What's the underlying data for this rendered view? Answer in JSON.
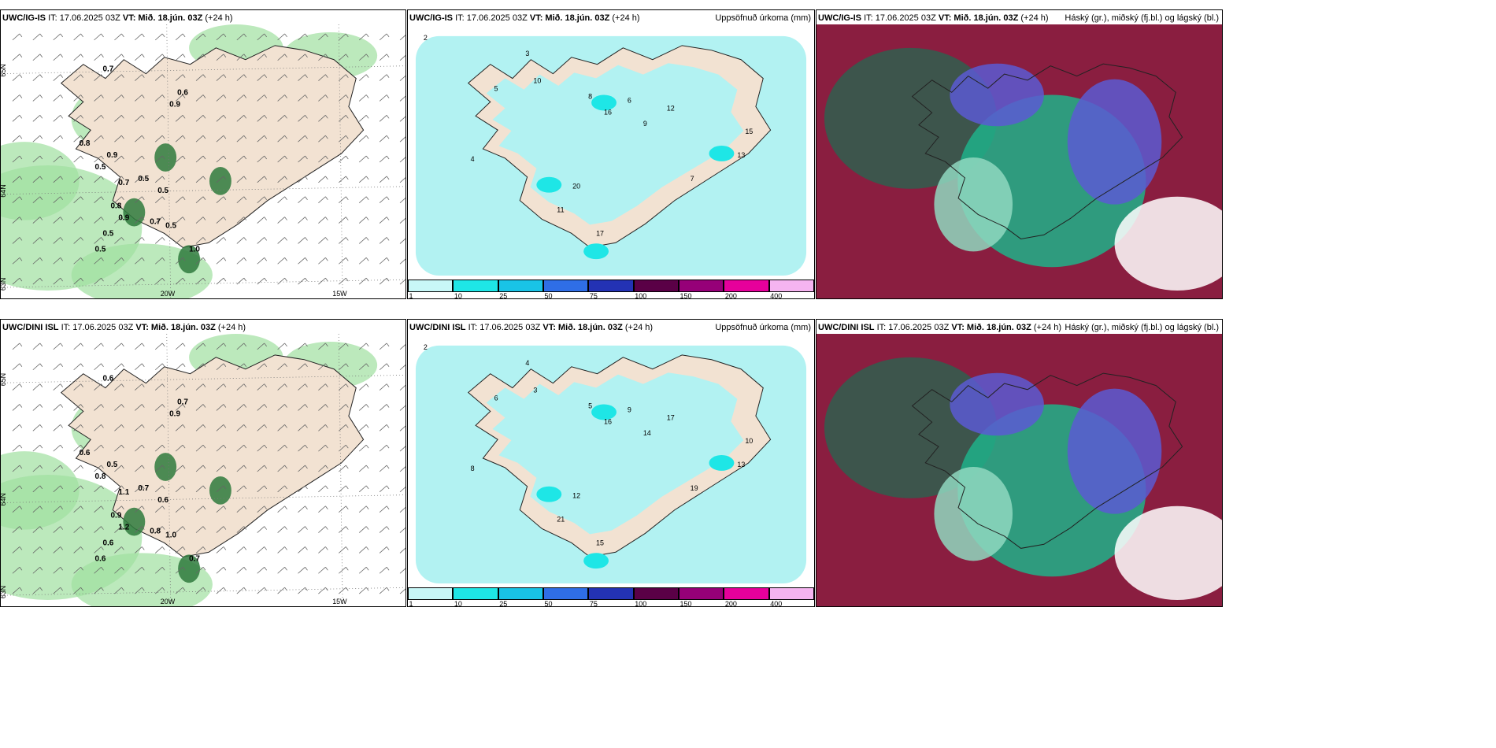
{
  "rows": [
    {
      "model": "UWC/IG-IS",
      "it": "IT: 17.06.2025 03Z",
      "vt": "VT: Mið. 18.jún. 03Z",
      "lead": "(+24 h)",
      "wind_values": [
        "0.7",
        "0.6",
        "0.9",
        "0.8",
        "0.9",
        "0.5",
        "0.7",
        "0.5",
        "0.5",
        "0.5",
        "0.8",
        "0.9",
        "0.5",
        "0.7",
        "1.0",
        "0.5"
      ],
      "precip_values": [
        "2",
        "3",
        "5",
        "10",
        "8",
        "6",
        "12",
        "9",
        "16",
        "13",
        "20",
        "11",
        "7",
        "4",
        "17",
        "15"
      ],
      "lon_labels": [
        "20W",
        "15W"
      ]
    },
    {
      "model": "UWC/DINI ISL",
      "it": "IT: 17.06.2025 03Z",
      "vt": "VT: Mið. 18.jún. 03Z",
      "lead": "(+24 h)",
      "wind_values": [
        "0.6",
        "0.7",
        "0.9",
        "0.6",
        "0.5",
        "0.8",
        "1.1",
        "0.7",
        "0.6",
        "1.0",
        "0.9",
        "1.2",
        "0.6",
        "0.8",
        "0.7",
        "0.6"
      ],
      "precip_values": [
        "2",
        "4",
        "6",
        "3",
        "5",
        "9",
        "17",
        "14",
        "16",
        "13",
        "12",
        "21",
        "19",
        "8",
        "15",
        "10"
      ],
      "lon_labels": [
        "20W",
        "15W"
      ]
    }
  ],
  "precip_title": "Uppsöfnuð úrkoma (mm)",
  "cloud_title": "Háský (gr.), miðský (fj.bl.) og lágský (bl.)",
  "colorbar": {
    "ticks": [
      "1",
      "10",
      "25",
      "50",
      "75",
      "100",
      "150",
      "200",
      "400"
    ],
    "colors": [
      "#c8f7f7",
      "#1ee6e6",
      "#19c3e6",
      "#2f6ee6",
      "#2332b4",
      "#5a0046",
      "#960078",
      "#e6009b",
      "#f5b4f0"
    ]
  },
  "colors": {
    "land": "#f2e2d2",
    "precip_light": "#b2f2f2",
    "wind_green": "#9fe0a0",
    "dark_green": "#2f7a3d",
    "cloud_red": "#8a1e40",
    "cloud_teal": "#1fb28a",
    "cloud_blue": "#5a5ad2"
  },
  "lat_labels": [
    "65N",
    "64N",
    "63N"
  ]
}
